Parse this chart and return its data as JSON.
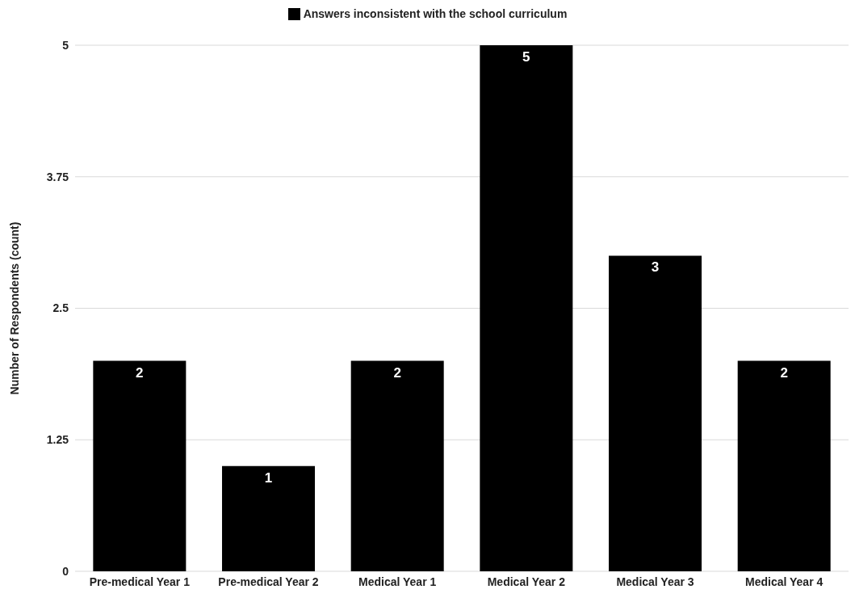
{
  "chart_data": {
    "type": "bar",
    "ylabel": "Number of Respondents (count)",
    "categories": [
      "Pre-medical Year 1",
      "Pre-medical Year 2",
      "Medical Year 1",
      "Medical Year 2",
      "Medical Year 3",
      "Medical Year 4"
    ],
    "series": [
      {
        "name": "Answers inconsistent with the school curriculum",
        "color": "#000000",
        "values": [
          2,
          1,
          2,
          5,
          3,
          2
        ]
      }
    ],
    "ylim": [
      0,
      5
    ],
    "yticks": [
      0,
      1.25,
      2.5,
      3.75,
      5
    ],
    "grid": "y",
    "legend": "top",
    "data_labels": true
  }
}
